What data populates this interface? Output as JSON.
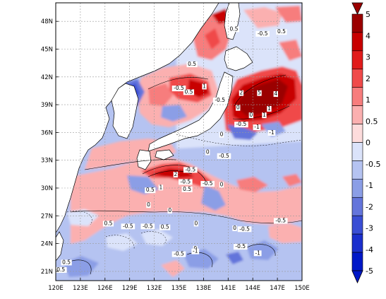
{
  "map": {
    "lon_range": [
      120,
      150
    ],
    "lat_range": [
      20,
      50
    ],
    "x_ticks": [
      "120E",
      "123E",
      "126E",
      "129E",
      "132E",
      "135E",
      "138E",
      "141E",
      "144E",
      "147E",
      "150E"
    ],
    "y_ticks": [
      "21N",
      "24N",
      "27N",
      "30N",
      "33N",
      "36N",
      "39N",
      "42N",
      "45N",
      "48N"
    ],
    "gridlines": true
  },
  "colorbar": {
    "levels": [
      "5",
      "4",
      "3",
      "2",
      "1",
      "0.5",
      "0",
      "-0.5",
      "-1",
      "-2",
      "-3",
      "-4",
      "-5"
    ],
    "colors": [
      "#9b0000",
      "#c80000",
      "#e11b1b",
      "#f04a4a",
      "#f77d7d",
      "#fbb0b0",
      "#fddcdc",
      "#dbe3fa",
      "#b5c3f1",
      "#8b9ee6",
      "#6475db",
      "#3a4ed4",
      "#1b2fcd",
      "#0018c8"
    ]
  },
  "contour_labels": [
    {
      "text": "-0.5",
      "lon": 135.0,
      "lat": 40.6
    },
    {
      "text": "0.5",
      "lon": 136.2,
      "lat": 40.2
    },
    {
      "text": "1",
      "lon": 138.1,
      "lat": 40.8
    },
    {
      "text": "0.5",
      "lon": 136.6,
      "lat": 43.2
    },
    {
      "text": "0.5",
      "lon": 141.7,
      "lat": 47.0
    },
    {
      "text": "-0.5",
      "lon": 145.2,
      "lat": 46.5
    },
    {
      "text": "0.5",
      "lon": 147.5,
      "lat": 46.7
    },
    {
      "text": "2",
      "lon": 142.6,
      "lat": 40.1
    },
    {
      "text": "5",
      "lon": 144.8,
      "lat": 40.1
    },
    {
      "text": "4",
      "lon": 146.8,
      "lat": 40.0
    },
    {
      "text": "-0.5",
      "lon": 140.0,
      "lat": 39.3
    },
    {
      "text": "0",
      "lon": 142.2,
      "lat": 38.5
    },
    {
      "text": "1",
      "lon": 146.0,
      "lat": 38.4
    },
    {
      "text": "1",
      "lon": 145.4,
      "lat": 37.7
    },
    {
      "text": "0",
      "lon": 143.8,
      "lat": 37.7
    },
    {
      "text": "-0.5",
      "lon": 142.6,
      "lat": 36.7
    },
    {
      "text": "-1",
      "lon": 144.5,
      "lat": 36.4
    },
    {
      "text": "-1",
      "lon": 146.3,
      "lat": 35.8
    },
    {
      "text": "0",
      "lon": 140.2,
      "lat": 35.6
    },
    {
      "text": "0",
      "lon": 138.5,
      "lat": 33.7
    },
    {
      "text": "-0.5",
      "lon": 140.5,
      "lat": 33.3
    },
    {
      "text": "-0.5",
      "lon": 136.4,
      "lat": 31.8
    },
    {
      "text": "2",
      "lon": 134.6,
      "lat": 31.3
    },
    {
      "text": "-0.5",
      "lon": 135.8,
      "lat": 30.5
    },
    {
      "text": "1",
      "lon": 132.8,
      "lat": 29.9
    },
    {
      "text": "0.5",
      "lon": 131.5,
      "lat": 29.6
    },
    {
      "text": "-0.5",
      "lon": 138.5,
      "lat": 30.3
    },
    {
      "text": "0",
      "lon": 140.2,
      "lat": 30.2
    },
    {
      "text": "0.5",
      "lon": 136.0,
      "lat": 29.7
    },
    {
      "text": "0",
      "lon": 131.3,
      "lat": 28.0
    },
    {
      "text": "0",
      "lon": 133.9,
      "lat": 27.4
    },
    {
      "text": "0.5",
      "lon": 126.4,
      "lat": 26.0
    },
    {
      "text": "-0.5",
      "lon": 128.8,
      "lat": 25.7
    },
    {
      "text": "-0.5",
      "lon": 131.2,
      "lat": 25.7
    },
    {
      "text": "0.5",
      "lon": 133.3,
      "lat": 25.6
    },
    {
      "text": "0",
      "lon": 137.1,
      "lat": 26.0
    },
    {
      "text": "0",
      "lon": 141.8,
      "lat": 25.5
    },
    {
      "text": "-0.5",
      "lon": 143.0,
      "lat": 25.4
    },
    {
      "text": "-0.5",
      "lon": 147.4,
      "lat": 26.3
    },
    {
      "text": "0",
      "lon": 137.0,
      "lat": 23.3
    },
    {
      "text": "-0.5",
      "lon": 135.0,
      "lat": 22.7
    },
    {
      "text": "-1",
      "lon": 137.0,
      "lat": 23.0
    },
    {
      "text": "-1",
      "lon": 144.6,
      "lat": 22.8
    },
    {
      "text": "-0.5",
      "lon": 120.5,
      "lat": 21.0
    },
    {
      "text": "0.5",
      "lon": 121.3,
      "lat": 21.8
    },
    {
      "text": "-0.5",
      "lon": 142.5,
      "lat": 23.5
    }
  ]
}
